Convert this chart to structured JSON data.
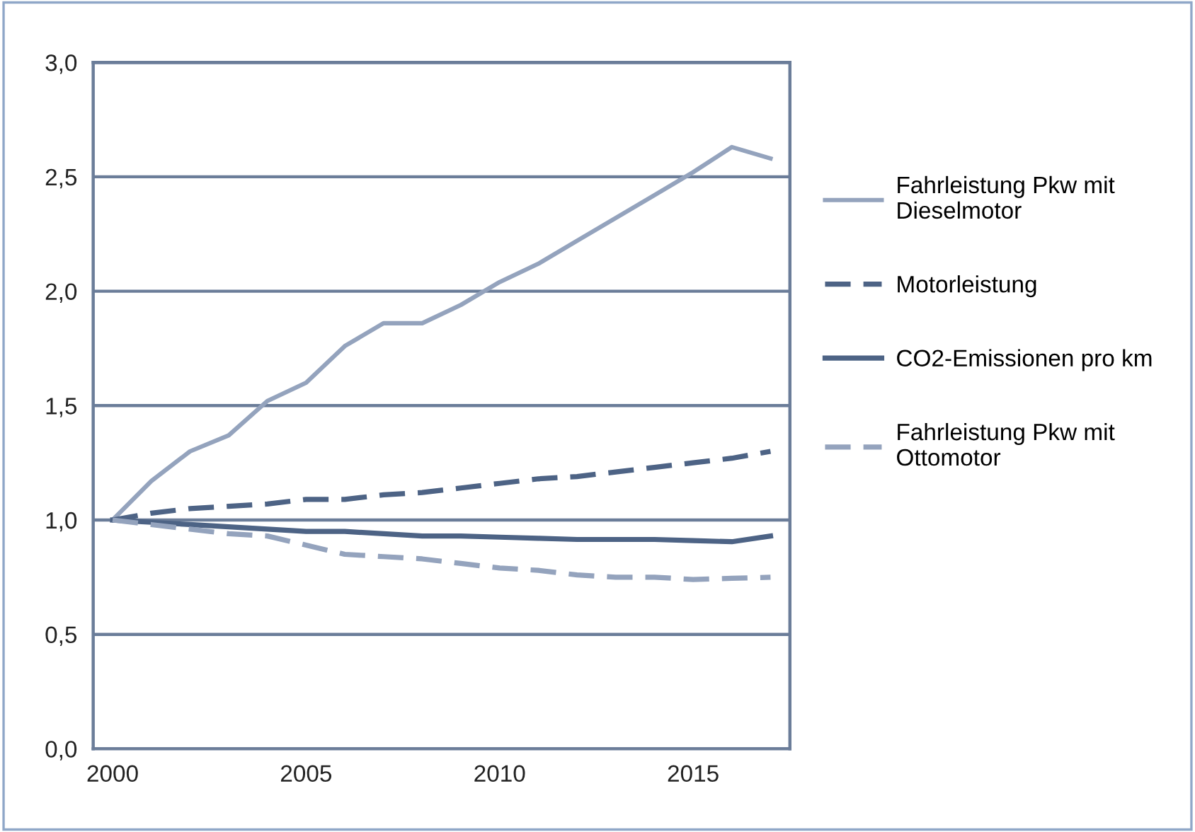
{
  "chart_data": {
    "type": "line",
    "x": [
      2000,
      2001,
      2002,
      2003,
      2004,
      2005,
      2006,
      2007,
      2008,
      2009,
      2010,
      2011,
      2012,
      2013,
      2014,
      2015,
      2016,
      2017
    ],
    "xlim": [
      1999.5,
      2017.5
    ],
    "xticks": [
      2000,
      2005,
      2010,
      2015
    ],
    "ylim": [
      0,
      3
    ],
    "yticks": [
      {
        "value": 0,
        "label": "0,0"
      },
      {
        "value": 0.5,
        "label": "0,5"
      },
      {
        "value": 1,
        "label": "1,0"
      },
      {
        "value": 1.5,
        "label": "1,5"
      },
      {
        "value": 2,
        "label": "2,0"
      },
      {
        "value": 2.5,
        "label": "2,5"
      },
      {
        "value": 3,
        "label": "3,0"
      }
    ],
    "grid": "y",
    "legend": "right",
    "series": [
      {
        "name": "Fahrleistung Pkw mit Dieselmotor",
        "color": "#94a3bd",
        "line_style": "solid",
        "values": [
          1.0,
          1.17,
          1.3,
          1.37,
          1.52,
          1.6,
          1.76,
          1.86,
          1.86,
          1.94,
          2.04,
          2.12,
          2.22,
          2.32,
          2.42,
          2.52,
          2.63,
          2.58
        ]
      },
      {
        "name": "Motorleistung",
        "color": "#4d6385",
        "line_style": "dashed",
        "values": [
          1.0,
          1.03,
          1.05,
          1.06,
          1.07,
          1.09,
          1.09,
          1.11,
          1.12,
          1.14,
          1.16,
          1.18,
          1.19,
          1.21,
          1.23,
          1.25,
          1.27,
          1.3
        ]
      },
      {
        "name": "CO2-Emissionen pro km",
        "color": "#4d6385",
        "line_style": "solid",
        "values": [
          1.0,
          0.99,
          0.98,
          0.97,
          0.96,
          0.95,
          0.95,
          0.94,
          0.93,
          0.93,
          0.925,
          0.92,
          0.915,
          0.915,
          0.915,
          0.91,
          0.905,
          0.93
        ]
      },
      {
        "name": "Fahrleistung Pkw mit Ottomotor",
        "color": "#94a3bd",
        "line_style": "dashed",
        "values": [
          1.0,
          0.98,
          0.96,
          0.94,
          0.93,
          0.89,
          0.85,
          0.84,
          0.83,
          0.81,
          0.79,
          0.78,
          0.76,
          0.75,
          0.75,
          0.74,
          0.745,
          0.75
        ]
      }
    ]
  }
}
